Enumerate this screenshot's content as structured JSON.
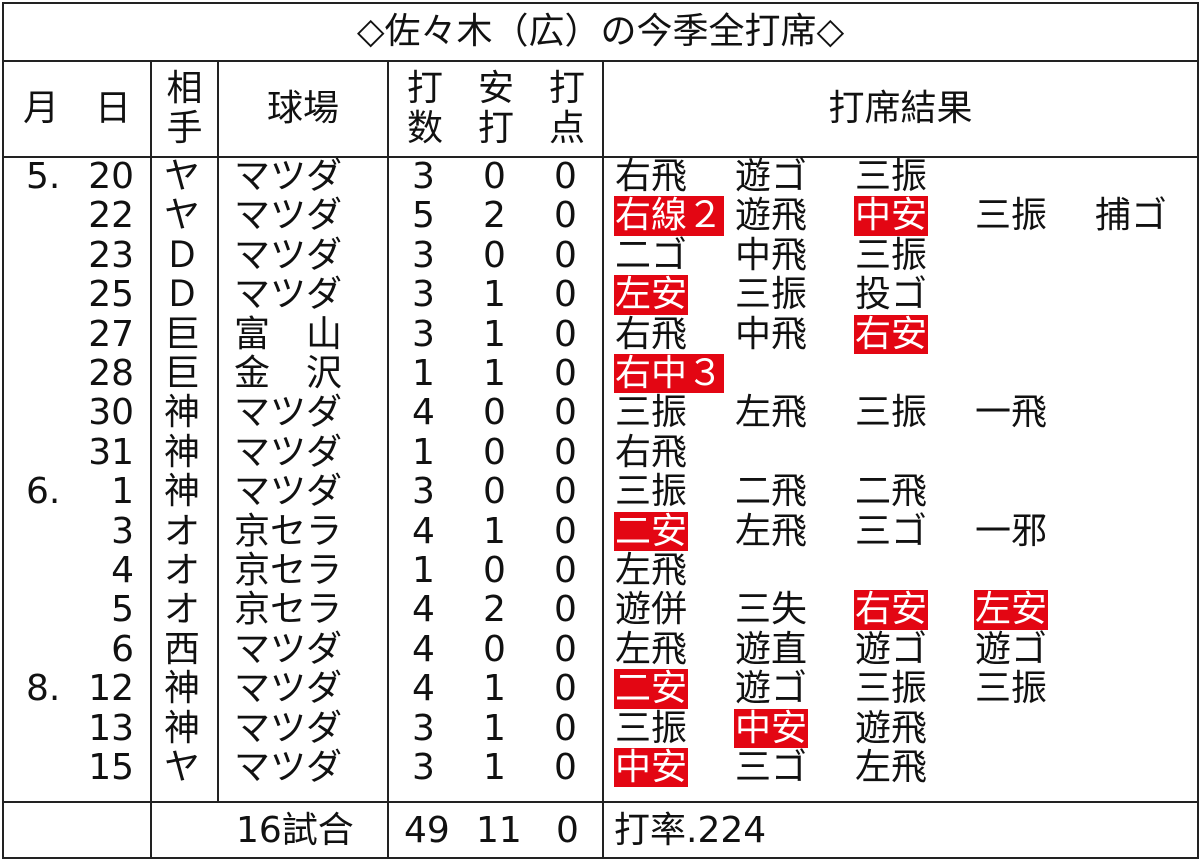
{
  "title": "◇佐々木（広）の今季全打席◇",
  "headers": {
    "date": [
      "月",
      "日"
    ],
    "opponent": [
      "相",
      "手"
    ],
    "stadium": "球場",
    "at_bats": [
      "打",
      "数"
    ],
    "hits": [
      "安",
      "打"
    ],
    "rbi": [
      "打",
      "点"
    ],
    "results": "打席結果"
  },
  "rows": [
    {
      "month": "5.",
      "day": "20",
      "opp": "ヤ",
      "stadium": "マツダ",
      "ab": "3",
      "h": "0",
      "rbi": "0",
      "results": [
        {
          "t": "右飛",
          "hit": false
        },
        {
          "t": "遊ゴ",
          "hit": false
        },
        {
          "t": "三振",
          "hit": false
        }
      ]
    },
    {
      "month": "",
      "day": "22",
      "opp": "ヤ",
      "stadium": "マツダ",
      "ab": "5",
      "h": "2",
      "rbi": "0",
      "results": [
        {
          "t": "右線２",
          "hit": true
        },
        {
          "t": "遊飛",
          "hit": false
        },
        {
          "t": "中安",
          "hit": true
        },
        {
          "t": "三振",
          "hit": false
        },
        {
          "t": "捕ゴ",
          "hit": false
        }
      ]
    },
    {
      "month": "",
      "day": "23",
      "opp": "Ｄ",
      "stadium": "マツダ",
      "ab": "3",
      "h": "0",
      "rbi": "0",
      "results": [
        {
          "t": "二ゴ",
          "hit": false
        },
        {
          "t": "中飛",
          "hit": false
        },
        {
          "t": "三振",
          "hit": false
        }
      ]
    },
    {
      "month": "",
      "day": "25",
      "opp": "Ｄ",
      "stadium": "マツダ",
      "ab": "3",
      "h": "1",
      "rbi": "0",
      "results": [
        {
          "t": "左安",
          "hit": true
        },
        {
          "t": "三振",
          "hit": false
        },
        {
          "t": "投ゴ",
          "hit": false
        }
      ]
    },
    {
      "month": "",
      "day": "27",
      "opp": "巨",
      "stadium": "富　山",
      "ab": "3",
      "h": "1",
      "rbi": "0",
      "results": [
        {
          "t": "右飛",
          "hit": false
        },
        {
          "t": "中飛",
          "hit": false
        },
        {
          "t": "右安",
          "hit": true
        }
      ]
    },
    {
      "month": "",
      "day": "28",
      "opp": "巨",
      "stadium": "金　沢",
      "ab": "1",
      "h": "1",
      "rbi": "0",
      "results": [
        {
          "t": "右中３",
          "hit": true
        }
      ]
    },
    {
      "month": "",
      "day": "30",
      "opp": "神",
      "stadium": "マツダ",
      "ab": "4",
      "h": "0",
      "rbi": "0",
      "results": [
        {
          "t": "三振",
          "hit": false
        },
        {
          "t": "左飛",
          "hit": false
        },
        {
          "t": "三振",
          "hit": false
        },
        {
          "t": "一飛",
          "hit": false
        }
      ]
    },
    {
      "month": "",
      "day": "31",
      "opp": "神",
      "stadium": "マツダ",
      "ab": "1",
      "h": "0",
      "rbi": "0",
      "results": [
        {
          "t": "右飛",
          "hit": false
        }
      ]
    },
    {
      "month": "6.",
      "day": "1",
      "opp": "神",
      "stadium": "マツダ",
      "ab": "3",
      "h": "0",
      "rbi": "0",
      "results": [
        {
          "t": "三振",
          "hit": false
        },
        {
          "t": "二飛",
          "hit": false
        },
        {
          "t": "二飛",
          "hit": false
        }
      ]
    },
    {
      "month": "",
      "day": "3",
      "opp": "オ",
      "stadium": "京セラ",
      "ab": "4",
      "h": "1",
      "rbi": "0",
      "results": [
        {
          "t": "二安",
          "hit": true
        },
        {
          "t": "左飛",
          "hit": false
        },
        {
          "t": "三ゴ",
          "hit": false
        },
        {
          "t": "一邪",
          "hit": false
        }
      ]
    },
    {
      "month": "",
      "day": "4",
      "opp": "オ",
      "stadium": "京セラ",
      "ab": "1",
      "h": "0",
      "rbi": "0",
      "results": [
        {
          "t": "左飛",
          "hit": false
        }
      ]
    },
    {
      "month": "",
      "day": "5",
      "opp": "オ",
      "stadium": "京セラ",
      "ab": "4",
      "h": "2",
      "rbi": "0",
      "results": [
        {
          "t": "遊併",
          "hit": false
        },
        {
          "t": "三失",
          "hit": false
        },
        {
          "t": "右安",
          "hit": true
        },
        {
          "t": "左安",
          "hit": true
        }
      ]
    },
    {
      "month": "",
      "day": "6",
      "opp": "西",
      "stadium": "マツダ",
      "ab": "4",
      "h": "0",
      "rbi": "0",
      "results": [
        {
          "t": "左飛",
          "hit": false
        },
        {
          "t": "遊直",
          "hit": false
        },
        {
          "t": "遊ゴ",
          "hit": false
        },
        {
          "t": "遊ゴ",
          "hit": false
        }
      ]
    },
    {
      "month": "8.",
      "day": "12",
      "opp": "神",
      "stadium": "マツダ",
      "ab": "4",
      "h": "1",
      "rbi": "0",
      "results": [
        {
          "t": "二安",
          "hit": true
        },
        {
          "t": "遊ゴ",
          "hit": false
        },
        {
          "t": "三振",
          "hit": false
        },
        {
          "t": "三振",
          "hit": false
        }
      ]
    },
    {
      "month": "",
      "day": "13",
      "opp": "神",
      "stadium": "マツダ",
      "ab": "3",
      "h": "1",
      "rbi": "0",
      "results": [
        {
          "t": "三振",
          "hit": false
        },
        {
          "t": "中安",
          "hit": true
        },
        {
          "t": "遊飛",
          "hit": false
        }
      ]
    },
    {
      "month": "",
      "day": "15",
      "opp": "ヤ",
      "stadium": "マツダ",
      "ab": "3",
      "h": "1",
      "rbi": "0",
      "results": [
        {
          "t": "中安",
          "hit": true
        },
        {
          "t": "三ゴ",
          "hit": false
        },
        {
          "t": "左飛",
          "hit": false
        }
      ]
    }
  ],
  "totals": {
    "games": "16試合",
    "ab": "49",
    "h": "11",
    "rbi": "0",
    "avg": "打率.224"
  },
  "colors": {
    "hit_background": "#e30613",
    "hit_text": "#ffffff",
    "border": "#222222"
  }
}
